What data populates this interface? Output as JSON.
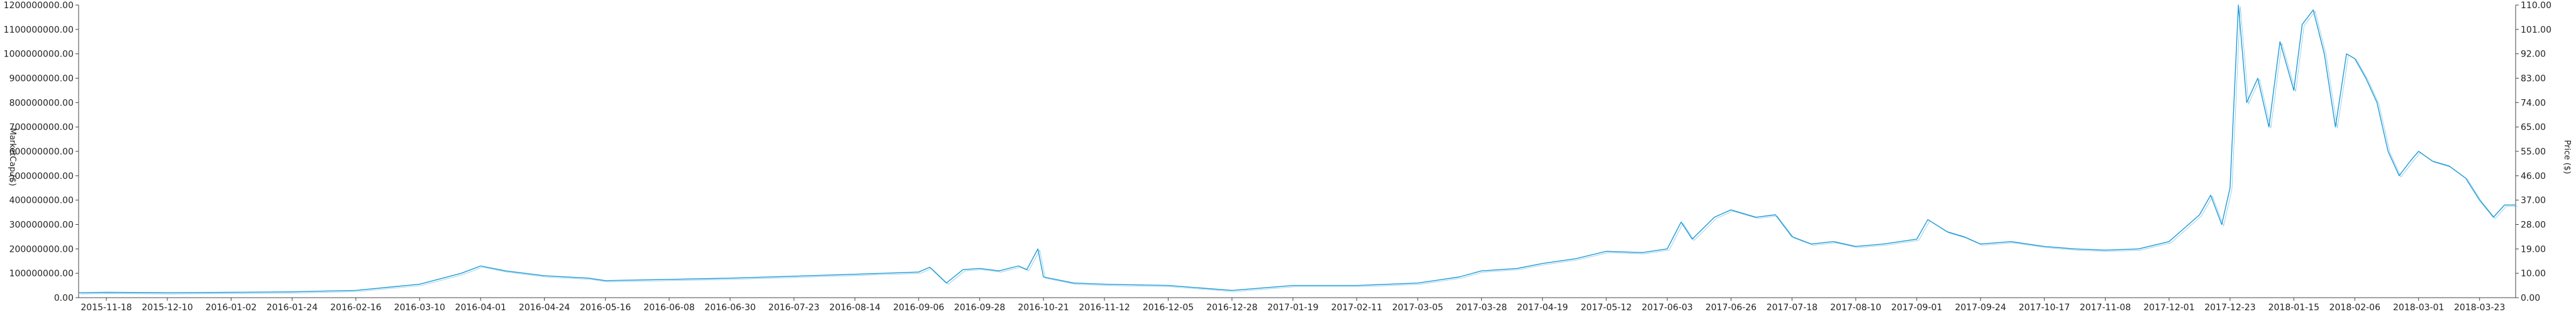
{
  "chart_data": {
    "type": "line",
    "title": "",
    "ylabel_left": "MarketCap ($)",
    "ylabel_right": "Price ($)",
    "ylim_left": [
      0,
      1200000000
    ],
    "ylim_right": [
      0,
      110
    ],
    "xlim": [
      "2015-11-08",
      "2018-04-05"
    ],
    "grid": false,
    "legend": "none",
    "colors": {
      "series": "#1f9ad6",
      "axis": "#444444",
      "text": "#222222"
    },
    "y_ticks_left": [
      "0.00",
      "100000000.00",
      "200000000.00",
      "300000000.00",
      "400000000.00",
      "500000000.00",
      "600000000.00",
      "700000000.00",
      "800000000.00",
      "900000000.00",
      "1000000000.00",
      "1100000000.00",
      "1200000000.00"
    ],
    "y_ticks_right": [
      "0.00",
      "10.00",
      "19.00",
      "28.00",
      "37.00",
      "46.00",
      "55.00",
      "65.00",
      "74.00",
      "83.00",
      "92.00",
      "101.00",
      "110.00"
    ],
    "x_ticks": [
      "2015-11-18",
      "2015-12-10",
      "2016-01-02",
      "2016-01-24",
      "2016-02-16",
      "2016-03-10",
      "2016-04-01",
      "2016-04-24",
      "2016-05-16",
      "2016-06-08",
      "2016-06-30",
      "2016-07-23",
      "2016-08-14",
      "2016-09-06",
      "2016-09-28",
      "2016-10-21",
      "2016-11-12",
      "2016-12-05",
      "2016-12-28",
      "2017-01-19",
      "2017-02-11",
      "2017-03-05",
      "2017-03-28",
      "2017-04-19",
      "2017-05-12",
      "2017-06-03",
      "2017-06-26",
      "2017-07-18",
      "2017-08-10",
      "2017-09-01",
      "2017-09-24",
      "2017-10-17",
      "2017-11-08",
      "2017-12-01",
      "2017-12-23",
      "2018-01-15",
      "2018-02-06",
      "2018-03-01",
      "2018-03-23"
    ],
    "series": [
      {
        "name": "MarketCap ($)",
        "axis": "left",
        "x": [
          "2015-11-08",
          "2015-11-18",
          "2015-12-10",
          "2016-01-02",
          "2016-01-24",
          "2016-02-16",
          "2016-03-10",
          "2016-03-25",
          "2016-04-01",
          "2016-04-10",
          "2016-04-24",
          "2016-05-10",
          "2016-05-16",
          "2016-06-08",
          "2016-06-30",
          "2016-07-23",
          "2016-08-14",
          "2016-09-06",
          "2016-09-10",
          "2016-09-16",
          "2016-09-22",
          "2016-09-28",
          "2016-10-05",
          "2016-10-12",
          "2016-10-15",
          "2016-10-19",
          "2016-10-21",
          "2016-11-01",
          "2016-11-12",
          "2016-12-05",
          "2016-12-28",
          "2017-01-19",
          "2017-02-11",
          "2017-03-05",
          "2017-03-20",
          "2017-03-28",
          "2017-04-10",
          "2017-04-19",
          "2017-05-01",
          "2017-05-12",
          "2017-05-25",
          "2017-06-03",
          "2017-06-08",
          "2017-06-12",
          "2017-06-20",
          "2017-06-26",
          "2017-07-05",
          "2017-07-12",
          "2017-07-18",
          "2017-07-25",
          "2017-08-02",
          "2017-08-10",
          "2017-08-20",
          "2017-09-01",
          "2017-09-05",
          "2017-09-12",
          "2017-09-18",
          "2017-09-24",
          "2017-10-05",
          "2017-10-17",
          "2017-10-28",
          "2017-11-08",
          "2017-11-20",
          "2017-12-01",
          "2017-12-08",
          "2017-12-12",
          "2017-12-16",
          "2017-12-20",
          "2017-12-23",
          "2017-12-26",
          "2017-12-29",
          "2018-01-02",
          "2018-01-06",
          "2018-01-10",
          "2018-01-15",
          "2018-01-18",
          "2018-01-22",
          "2018-01-26",
          "2018-01-30",
          "2018-02-03",
          "2018-02-06",
          "2018-02-10",
          "2018-02-14",
          "2018-02-18",
          "2018-02-22",
          "2018-02-26",
          "2018-03-01",
          "2018-03-06",
          "2018-03-12",
          "2018-03-18",
          "2018-03-23",
          "2018-03-28",
          "2018-04-01",
          "2018-04-05"
        ],
        "values": [
          20000000,
          22000000,
          20000000,
          22000000,
          24000000,
          30000000,
          55000000,
          100000000,
          130000000,
          110000000,
          90000000,
          80000000,
          70000000,
          75000000,
          80000000,
          88000000,
          96000000,
          105000000,
          125000000,
          60000000,
          115000000,
          120000000,
          110000000,
          130000000,
          115000000,
          200000000,
          85000000,
          60000000,
          55000000,
          50000000,
          30000000,
          50000000,
          50000000,
          60000000,
          85000000,
          110000000,
          120000000,
          140000000,
          160000000,
          190000000,
          185000000,
          200000000,
          310000000,
          240000000,
          330000000,
          360000000,
          330000000,
          340000000,
          250000000,
          220000000,
          230000000,
          210000000,
          220000000,
          240000000,
          320000000,
          270000000,
          250000000,
          220000000,
          230000000,
          210000000,
          200000000,
          195000000,
          200000000,
          230000000,
          300000000,
          340000000,
          420000000,
          300000000,
          450000000,
          1200000000,
          800000000,
          900000000,
          700000000,
          1050000000,
          850000000,
          1120000000,
          1180000000,
          1000000000,
          700000000,
          1000000000,
          980000000,
          900000000,
          800000000,
          600000000,
          500000000,
          560000000,
          600000000,
          560000000,
          540000000,
          490000000,
          400000000,
          330000000,
          380000000,
          380000000
        ]
      }
    ]
  }
}
